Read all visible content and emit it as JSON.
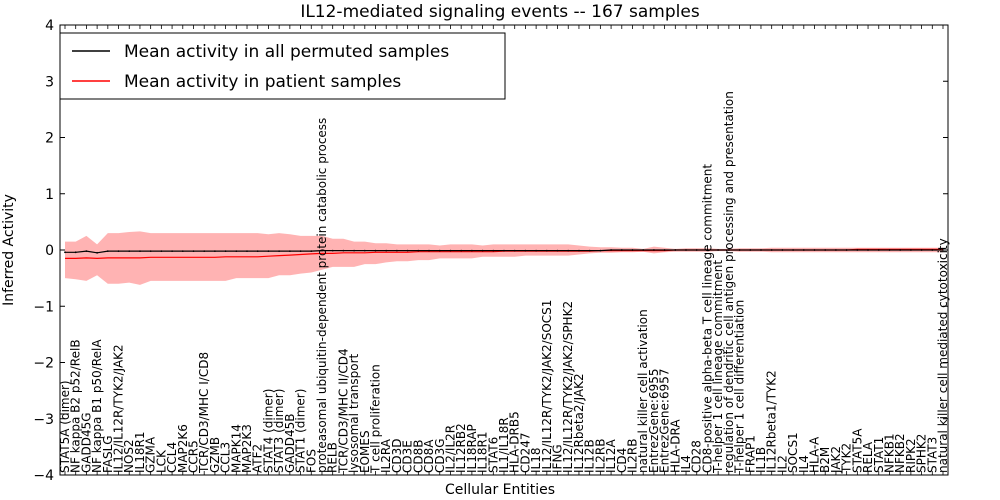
{
  "chart_data": {
    "type": "line",
    "title": "IL12-mediated signaling events -- 167 samples",
    "xlabel": "Cellular Entities",
    "ylabel": "Inferred Activity",
    "ylim": [
      -4,
      4
    ],
    "yticks": [
      -4,
      -3,
      -2,
      -1,
      0,
      1,
      2,
      3,
      4
    ],
    "legend_position": "top-left",
    "legend": [
      {
        "label": "Mean activity in all permuted samples",
        "color": "#000000"
      },
      {
        "label": "Mean activity in patient samples",
        "color": "#ff0000"
      }
    ],
    "band_color": "#ff9999",
    "categories": [
      "STAT5A (dimer)",
      "NF kappa B2 p52/RelB",
      "GADD45G",
      "NF kappa B1 p50/RelA",
      "FASLG",
      "IL12/IL12R/TYK2/JAK2",
      "NOS2",
      "IL18R1",
      "GZMA",
      "LCK",
      "CCL4",
      "MAP2K6",
      "CCR5",
      "TCR/CD3/MHC I/CD8",
      "GZMB",
      "CCL3",
      "MAPK14",
      "MAP2K3",
      "ATF2",
      "STAT4 (dimer)",
      "STAT3 (dimer)",
      "GADD45B",
      "STAT1 (dimer)",
      "FOS",
      "proteasomal ubiquitin-dependent protein catabolic process",
      "RELB",
      "TCR/CD3/MHC II/CD4",
      "lysosomal transport",
      "EOMES",
      "T cell proliferation",
      "IL2RA",
      "CD3D",
      "CD3E",
      "CD8B",
      "CD8A",
      "CD3G",
      "IL2/IL2R",
      "IL12RB2",
      "IL18RAP",
      "IL18R1",
      "STAT6",
      "IL1/IL18R",
      "HLA-DRB5",
      "CD247",
      "IL18",
      "IL12/IL12R/TYK2/JAK2/SOCS1",
      "IFNG",
      "IL12/IL12R/TYK2/JAK2/SPHK2",
      "IL12Rbeta2/JAK2",
      "IL12B",
      "IL2RB",
      "IL12A",
      "CD4",
      "IL2RB",
      "natural killer cell activation",
      "EntrezGene:6955",
      "EntrezGene:6957",
      "HLA-DRA",
      "IL4",
      "CD28",
      "CD8-positive alpha-beta T cell lineage commitment",
      "T-helper 1 cell lineage commitment",
      "regulation of dendritic cell antigen processing and presentation",
      "T-helper 1 cell differentiation",
      "FRAP1",
      "IL1B",
      "IL12Rbeta1/TYK2",
      "IL2",
      "SOCS1",
      "IL4",
      "HLA-A",
      "B2M",
      "JAK2",
      "TYK2",
      "STAT5A",
      "RELA",
      "STAT1",
      "NFKB1",
      "NFKB2",
      "RIPK2",
      "SPHK2",
      "STAT3",
      "natural killer cell mediated cytotoxicity"
    ],
    "series": [
      {
        "name": "Mean activity in all permuted samples",
        "values": [
          -0.04,
          -0.04,
          -0.02,
          -0.05,
          -0.02,
          -0.02,
          -0.02,
          -0.02,
          -0.02,
          -0.02,
          -0.02,
          -0.02,
          -0.02,
          -0.02,
          -0.02,
          -0.02,
          -0.02,
          -0.02,
          -0.02,
          -0.02,
          -0.02,
          -0.02,
          -0.02,
          -0.02,
          -0.01,
          -0.01,
          -0.01,
          -0.01,
          -0.01,
          -0.01,
          -0.01,
          -0.01,
          -0.01,
          -0.01,
          -0.01,
          -0.01,
          -0.01,
          -0.01,
          -0.01,
          -0.01,
          -0.01,
          -0.01,
          -0.01,
          -0.01,
          -0.01,
          -0.01,
          -0.01,
          -0.01,
          -0.01,
          -0.01,
          -0.01,
          0.0,
          0.0,
          0.0,
          0.0,
          0.0,
          0.0,
          0.0,
          0.0,
          0.0,
          0.0,
          0.0,
          0.0,
          0.0,
          0.0,
          0.0,
          0.0,
          0.0,
          0.0,
          0.0,
          0.0,
          0.0,
          0.0,
          0.0,
          0.0,
          0.0,
          0.0,
          0.0,
          0.0,
          0.0,
          0.0,
          0.0,
          0.0
        ]
      },
      {
        "name": "Mean activity in patient samples",
        "values": [
          -0.15,
          -0.15,
          -0.14,
          -0.15,
          -0.14,
          -0.14,
          -0.14,
          -0.14,
          -0.13,
          -0.13,
          -0.13,
          -0.13,
          -0.13,
          -0.13,
          -0.13,
          -0.12,
          -0.12,
          -0.12,
          -0.12,
          -0.11,
          -0.1,
          -0.09,
          -0.08,
          -0.07,
          -0.06,
          -0.06,
          -0.05,
          -0.05,
          -0.05,
          -0.04,
          -0.04,
          -0.04,
          -0.04,
          -0.03,
          -0.03,
          -0.03,
          -0.03,
          -0.03,
          -0.03,
          -0.03,
          -0.03,
          -0.02,
          -0.02,
          -0.02,
          -0.02,
          -0.02,
          -0.02,
          -0.02,
          -0.02,
          -0.02,
          -0.01,
          -0.01,
          -0.01,
          -0.01,
          -0.01,
          -0.01,
          -0.01,
          0.0,
          0.0,
          0.0,
          0.0,
          0.0,
          0.0,
          0.0,
          0.0,
          0.0,
          0.0,
          0.0,
          0.0,
          0.0,
          0.0,
          0.0,
          0.0,
          0.0,
          0.01,
          0.01,
          0.01,
          0.01,
          0.01,
          0.01,
          0.01,
          0.01,
          0.01
        ]
      },
      {
        "name": "patient range upper",
        "values": [
          0.15,
          0.15,
          0.25,
          0.1,
          0.3,
          0.3,
          0.32,
          0.33,
          0.3,
          0.3,
          0.3,
          0.3,
          0.3,
          0.3,
          0.3,
          0.3,
          0.3,
          0.3,
          0.3,
          0.28,
          0.3,
          0.28,
          0.25,
          0.25,
          0.25,
          0.2,
          0.2,
          0.15,
          0.15,
          0.12,
          0.12,
          0.1,
          0.1,
          0.1,
          0.1,
          0.08,
          0.1,
          0.1,
          0.1,
          0.08,
          0.1,
          0.1,
          0.1,
          0.1,
          0.1,
          0.1,
          0.1,
          0.1,
          0.08,
          0.06,
          0.05,
          0.05,
          0.04,
          0.04,
          0.02,
          0.06,
          0.04,
          0.02,
          0.03,
          0.03,
          0.03,
          0.02,
          0.02,
          0.03,
          0.03,
          0.03,
          0.04,
          0.04,
          0.04,
          0.04,
          0.04,
          0.04,
          0.04,
          0.04,
          0.04,
          0.04,
          0.04,
          0.04,
          0.04,
          0.04,
          0.04,
          0.04,
          0.04
        ]
      },
      {
        "name": "patient range lower",
        "values": [
          -0.5,
          -0.52,
          -0.55,
          -0.45,
          -0.6,
          -0.6,
          -0.58,
          -0.62,
          -0.55,
          -0.55,
          -0.55,
          -0.55,
          -0.55,
          -0.55,
          -0.55,
          -0.55,
          -0.5,
          -0.5,
          -0.5,
          -0.5,
          -0.45,
          -0.45,
          -0.42,
          -0.4,
          -0.35,
          -0.3,
          -0.3,
          -0.3,
          -0.25,
          -0.25,
          -0.22,
          -0.2,
          -0.2,
          -0.18,
          -0.18,
          -0.15,
          -0.15,
          -0.15,
          -0.15,
          -0.12,
          -0.12,
          -0.12,
          -0.12,
          -0.1,
          -0.1,
          -0.1,
          -0.1,
          -0.1,
          -0.08,
          -0.06,
          -0.05,
          -0.05,
          -0.04,
          -0.04,
          -0.03,
          -0.06,
          -0.04,
          -0.03,
          -0.03,
          -0.03,
          -0.03,
          -0.02,
          -0.02,
          -0.03,
          -0.03,
          -0.03,
          -0.04,
          -0.04,
          -0.04,
          -0.04,
          -0.04,
          -0.04,
          -0.04,
          -0.04,
          -0.04,
          -0.04,
          -0.04,
          -0.04,
          -0.04,
          -0.04,
          -0.04,
          -0.04,
          -0.04
        ]
      }
    ]
  }
}
